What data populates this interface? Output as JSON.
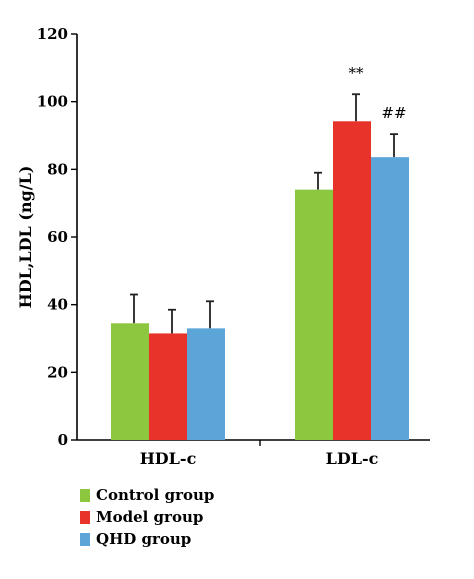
{
  "chart_data": {
    "type": "bar",
    "ylabel": "HDL,LDL (ng/L)",
    "xlabel": "",
    "ylim": [
      0,
      120
    ],
    "yticks": [
      0,
      20,
      40,
      60,
      80,
      100,
      120
    ],
    "categories": [
      "HDL-c",
      "LDL-c"
    ],
    "series": [
      {
        "name": "Control group",
        "color": "#8DC63F",
        "values": [
          34.5,
          74.0
        ],
        "errors": [
          8.5,
          5.0
        ]
      },
      {
        "name": "Model group",
        "color": "#E8332A",
        "values": [
          31.5,
          94.2
        ],
        "errors": [
          7.0,
          8.0
        ]
      },
      {
        "name": "QHD group",
        "color": "#5BA5D8",
        "values": [
          33.0,
          83.6
        ],
        "errors": [
          8.0,
          6.8
        ]
      }
    ],
    "annotations": [
      {
        "series": 1,
        "category": 1,
        "text": "**"
      },
      {
        "series": 2,
        "category": 1,
        "text": "##"
      }
    ],
    "grid": false,
    "legend_position": "bottom"
  }
}
